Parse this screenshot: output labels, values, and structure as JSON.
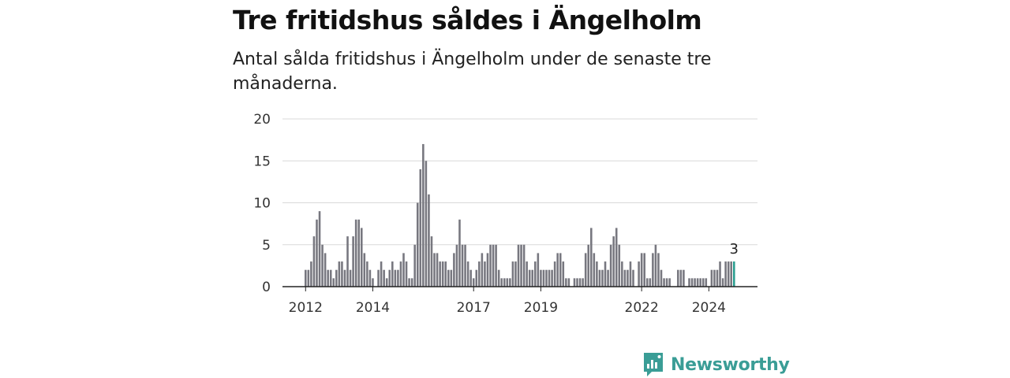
{
  "title": "Tre fritidshus såldes i Ängelholm",
  "subtitle": "Antal sålda fritidshus i Ängelholm under de senaste tre månaderna.",
  "brand": {
    "name": "Newsworthy",
    "color": "#3a9d96"
  },
  "chart_data": {
    "type": "bar",
    "x_start": "2012-01",
    "x_end": "2025-01",
    "ylim": [
      0,
      20
    ],
    "yticks": [
      0,
      5,
      10,
      15,
      20
    ],
    "xticks": [
      "2012",
      "2014",
      "2017",
      "2019",
      "2022",
      "2024"
    ],
    "colors": {
      "bar": "#77777f",
      "highlight": "#2a9d8f"
    },
    "highlight_label": "3",
    "values": [
      2,
      2,
      3,
      6,
      8,
      9,
      5,
      4,
      2,
      2,
      1,
      2,
      3,
      3,
      2,
      6,
      2,
      6,
      8,
      8,
      7,
      4,
      3,
      2,
      1,
      0,
      2,
      3,
      2,
      1,
      2,
      3,
      2,
      2,
      3,
      4,
      3,
      1,
      1,
      5,
      10,
      14,
      17,
      15,
      11,
      6,
      4,
      4,
      3,
      3,
      3,
      2,
      2,
      4,
      5,
      8,
      5,
      5,
      3,
      2,
      1,
      2,
      3,
      4,
      3,
      4,
      5,
      5,
      5,
      2,
      1,
      1,
      1,
      1,
      3,
      3,
      5,
      5,
      5,
      3,
      2,
      2,
      3,
      4,
      2,
      2,
      2,
      2,
      2,
      3,
      4,
      4,
      3,
      1,
      1,
      0,
      1,
      1,
      1,
      1,
      4,
      5,
      7,
      4,
      3,
      2,
      2,
      3,
      2,
      5,
      6,
      7,
      5,
      3,
      2,
      2,
      3,
      2,
      0,
      3,
      4,
      4,
      1,
      1,
      4,
      5,
      4,
      2,
      1,
      1,
      1,
      0,
      0,
      2,
      2,
      2,
      0,
      1,
      1,
      1,
      1,
      1,
      1,
      1,
      0,
      2,
      2,
      2,
      3,
      1,
      3,
      3,
      3,
      3
    ]
  }
}
